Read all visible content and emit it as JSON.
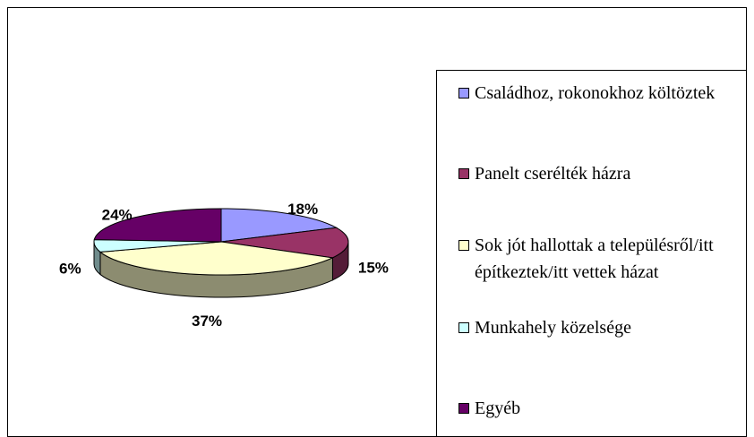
{
  "chart_data": {
    "type": "pie3d",
    "categories": [
      "Családhoz, rokonokhoz költöztek",
      "Panelt cserélték házra",
      "Sok jót hallottak a településről/itt építkeztek/itt vettek házat",
      "Munkahely közelsége",
      "Egyéb"
    ],
    "values": [
      18,
      15,
      37,
      6,
      24
    ],
    "value_labels": [
      "18%",
      "15%",
      "37%",
      "6%",
      "24%"
    ],
    "colors": [
      "#9999ff",
      "#993366",
      "#ffffcc",
      "#ccffff",
      "#660066"
    ],
    "legend": "right"
  }
}
